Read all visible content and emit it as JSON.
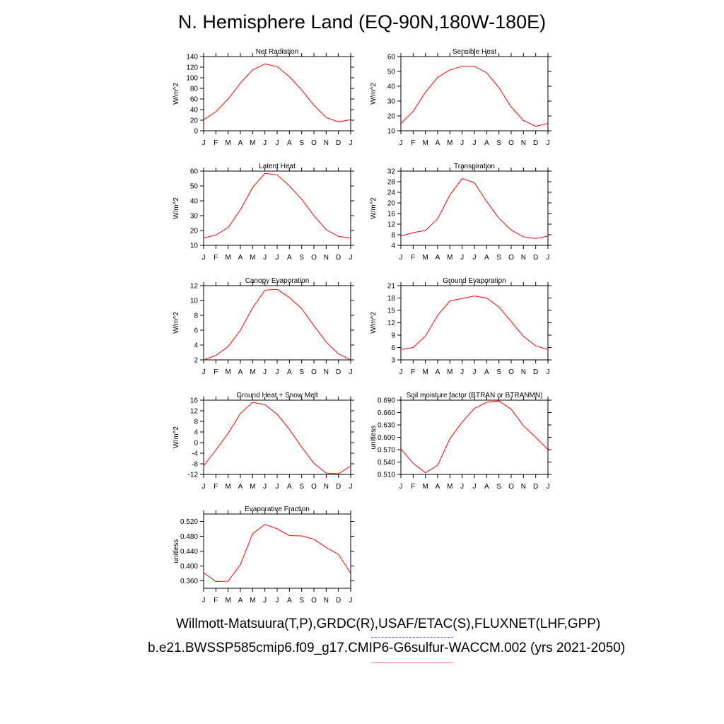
{
  "title": "N. Hemisphere Land (EQ-90N,180W-180E)",
  "footer": {
    "line1": "Willmott-Matsuura(T,P),GRDC(R),USAF/ETAC(S),FLUXNET(LHF,GPP)",
    "line2": "b.e21.BWSSP585cmip6.f09_g17.CMIP6-G6sulfur-WACCM.002 (yrs 2021-2050)"
  },
  "colors": {
    "series": "#ff0000",
    "axis": "#000000",
    "dash_blue": "#6a6aff",
    "dash_red": "#ff7070"
  },
  "chart_data": [
    {
      "type": "line",
      "title": "Net Radiation",
      "ylabel": "W/m^2",
      "x": [
        "J",
        "F",
        "M",
        "A",
        "M",
        "J",
        "J",
        "A",
        "S",
        "O",
        "N",
        "D",
        "J"
      ],
      "ylim": [
        0,
        140
      ],
      "yticks": [
        "0",
        "20",
        "40",
        "60",
        "80",
        "100",
        "120",
        "140"
      ],
      "values": [
        21,
        36,
        60,
        90,
        115,
        126,
        121,
        102,
        77,
        48,
        25,
        17,
        21
      ]
    },
    {
      "type": "line",
      "title": "Sensible Heat",
      "ylabel": "W/m^2",
      "x": [
        "J",
        "F",
        "M",
        "A",
        "M",
        "J",
        "J",
        "A",
        "S",
        "O",
        "N",
        "D",
        "J"
      ],
      "ylim": [
        10,
        60
      ],
      "yticks": [
        "10",
        "20",
        "30",
        "40",
        "50",
        "60"
      ],
      "values": [
        15,
        23,
        36,
        46,
        51,
        53.5,
        53.5,
        49,
        39,
        26,
        17,
        13,
        15
      ]
    },
    {
      "type": "line",
      "title": "Latent Heat",
      "ylabel": "W/m^2",
      "x": [
        "J",
        "F",
        "M",
        "A",
        "M",
        "J",
        "J",
        "A",
        "S",
        "O",
        "N",
        "D",
        "J"
      ],
      "ylim": [
        10,
        60
      ],
      "yticks": [
        "10",
        "20",
        "30",
        "40",
        "50",
        "60"
      ],
      "values": [
        15,
        17,
        22,
        34,
        49,
        58.5,
        57.5,
        50,
        41,
        30,
        20.5,
        16,
        15
      ]
    },
    {
      "type": "line",
      "title": "Transpiration",
      "ylabel": "W/m^2",
      "x": [
        "J",
        "F",
        "M",
        "A",
        "M",
        "J",
        "J",
        "A",
        "S",
        "O",
        "N",
        "D",
        "J"
      ],
      "ylim": [
        4,
        32
      ],
      "yticks": [
        "4",
        "8",
        "12",
        "16",
        "20",
        "24",
        "28",
        "32"
      ],
      "values": [
        7.5,
        8.8,
        9.6,
        14,
        23,
        29.2,
        27.6,
        20.5,
        14.2,
        9.8,
        7.2,
        6.6,
        7.5
      ]
    },
    {
      "type": "line",
      "title": "Canopy Evaporation",
      "ylabel": "W/m^2",
      "x": [
        "J",
        "F",
        "M",
        "A",
        "M",
        "J",
        "J",
        "A",
        "S",
        "O",
        "N",
        "D",
        "J"
      ],
      "ylim": [
        2,
        12
      ],
      "yticks": [
        "2",
        "4",
        "6",
        "8",
        "10",
        "12"
      ],
      "values": [
        2.0,
        2.6,
        3.8,
        6.0,
        9.0,
        11.4,
        11.5,
        10.4,
        8.9,
        6.6,
        4.4,
        2.8,
        2.0
      ]
    },
    {
      "type": "line",
      "title": "Ground Evaporation",
      "ylabel": "W/m^2",
      "x": [
        "J",
        "F",
        "M",
        "A",
        "M",
        "J",
        "J",
        "A",
        "S",
        "O",
        "N",
        "D",
        "J"
      ],
      "ylim": [
        3,
        21
      ],
      "yticks": [
        "3",
        "6",
        "9",
        "12",
        "15",
        "18",
        "21"
      ],
      "values": [
        5.5,
        6.0,
        8.8,
        13.8,
        17.3,
        17.9,
        18.5,
        18.0,
        15.8,
        12.3,
        8.7,
        6.4,
        5.5
      ]
    },
    {
      "type": "line",
      "title": "Ground Heat + Snow Melt",
      "ylabel": "W/m^2",
      "x": [
        "J",
        "F",
        "M",
        "A",
        "M",
        "J",
        "J",
        "A",
        "S",
        "O",
        "N",
        "D",
        "J"
      ],
      "ylim": [
        -12,
        16
      ],
      "yticks": [
        "-12",
        "-8",
        "-4",
        "0",
        "4",
        "8",
        "12",
        "16"
      ],
      "values": [
        -8.8,
        -2.8,
        3.5,
        11,
        15.2,
        14.3,
        10.7,
        5,
        -1.7,
        -7.8,
        -11.5,
        -11.8,
        -8.8
      ]
    },
    {
      "type": "line",
      "title": "Soil moisture factor (BTRAN or BTRANMN)",
      "ylabel": "unitless",
      "x": [
        "J",
        "F",
        "M",
        "A",
        "M",
        "J",
        "J",
        "A",
        "S",
        "O",
        "N",
        "D",
        "J"
      ],
      "ylim": [
        0.51,
        0.69
      ],
      "yticks": [
        "0.510",
        "0.540",
        "0.570",
        "0.600",
        "0.630",
        "0.660",
        "0.690"
      ],
      "values": [
        0.572,
        0.537,
        0.514,
        0.532,
        0.597,
        0.637,
        0.67,
        0.685,
        0.688,
        0.668,
        0.628,
        0.6,
        0.57
      ]
    },
    {
      "type": "line",
      "title": "Evaporative Fraction",
      "ylabel": "unitless",
      "x": [
        "J",
        "F",
        "M",
        "A",
        "M",
        "J",
        "J",
        "A",
        "S",
        "O",
        "N",
        "D",
        "J"
      ],
      "ylim": [
        0.34,
        0.54
      ],
      "yticks": [
        "0.360",
        "0.400",
        "0.440",
        "0.480",
        "0.520"
      ],
      "values": [
        0.382,
        0.358,
        0.359,
        0.404,
        0.487,
        0.512,
        0.5,
        0.482,
        0.481,
        0.472,
        0.45,
        0.431,
        0.38
      ]
    }
  ]
}
